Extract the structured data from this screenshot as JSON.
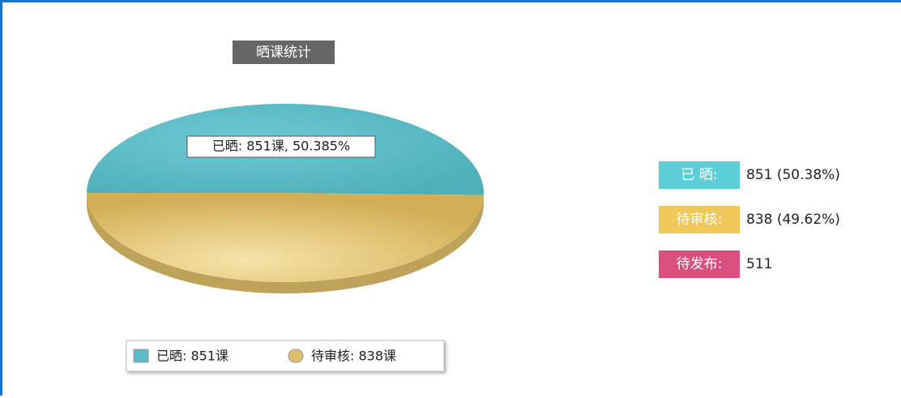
{
  "chart_data": {
    "type": "pie",
    "title": "晒课统计",
    "categories": [
      "已晒",
      "待审核"
    ],
    "values": [
      851,
      838
    ],
    "colors": [
      "#5bbcc6",
      "#dfc06a"
    ],
    "annotation": "已晒: 851课, 50.385%",
    "legend_labels": [
      "已晒: 851课",
      "待审核: 838课"
    ]
  },
  "stats": [
    {
      "label": "已 晒:",
      "text": "851 (50.38%)",
      "color": "#5ccfd9"
    },
    {
      "label": "待审核:",
      "text": "838 (49.62%)",
      "color": "#f0c85a"
    },
    {
      "label": "待发布:",
      "text": "511",
      "color": "#d94f7f"
    }
  ]
}
